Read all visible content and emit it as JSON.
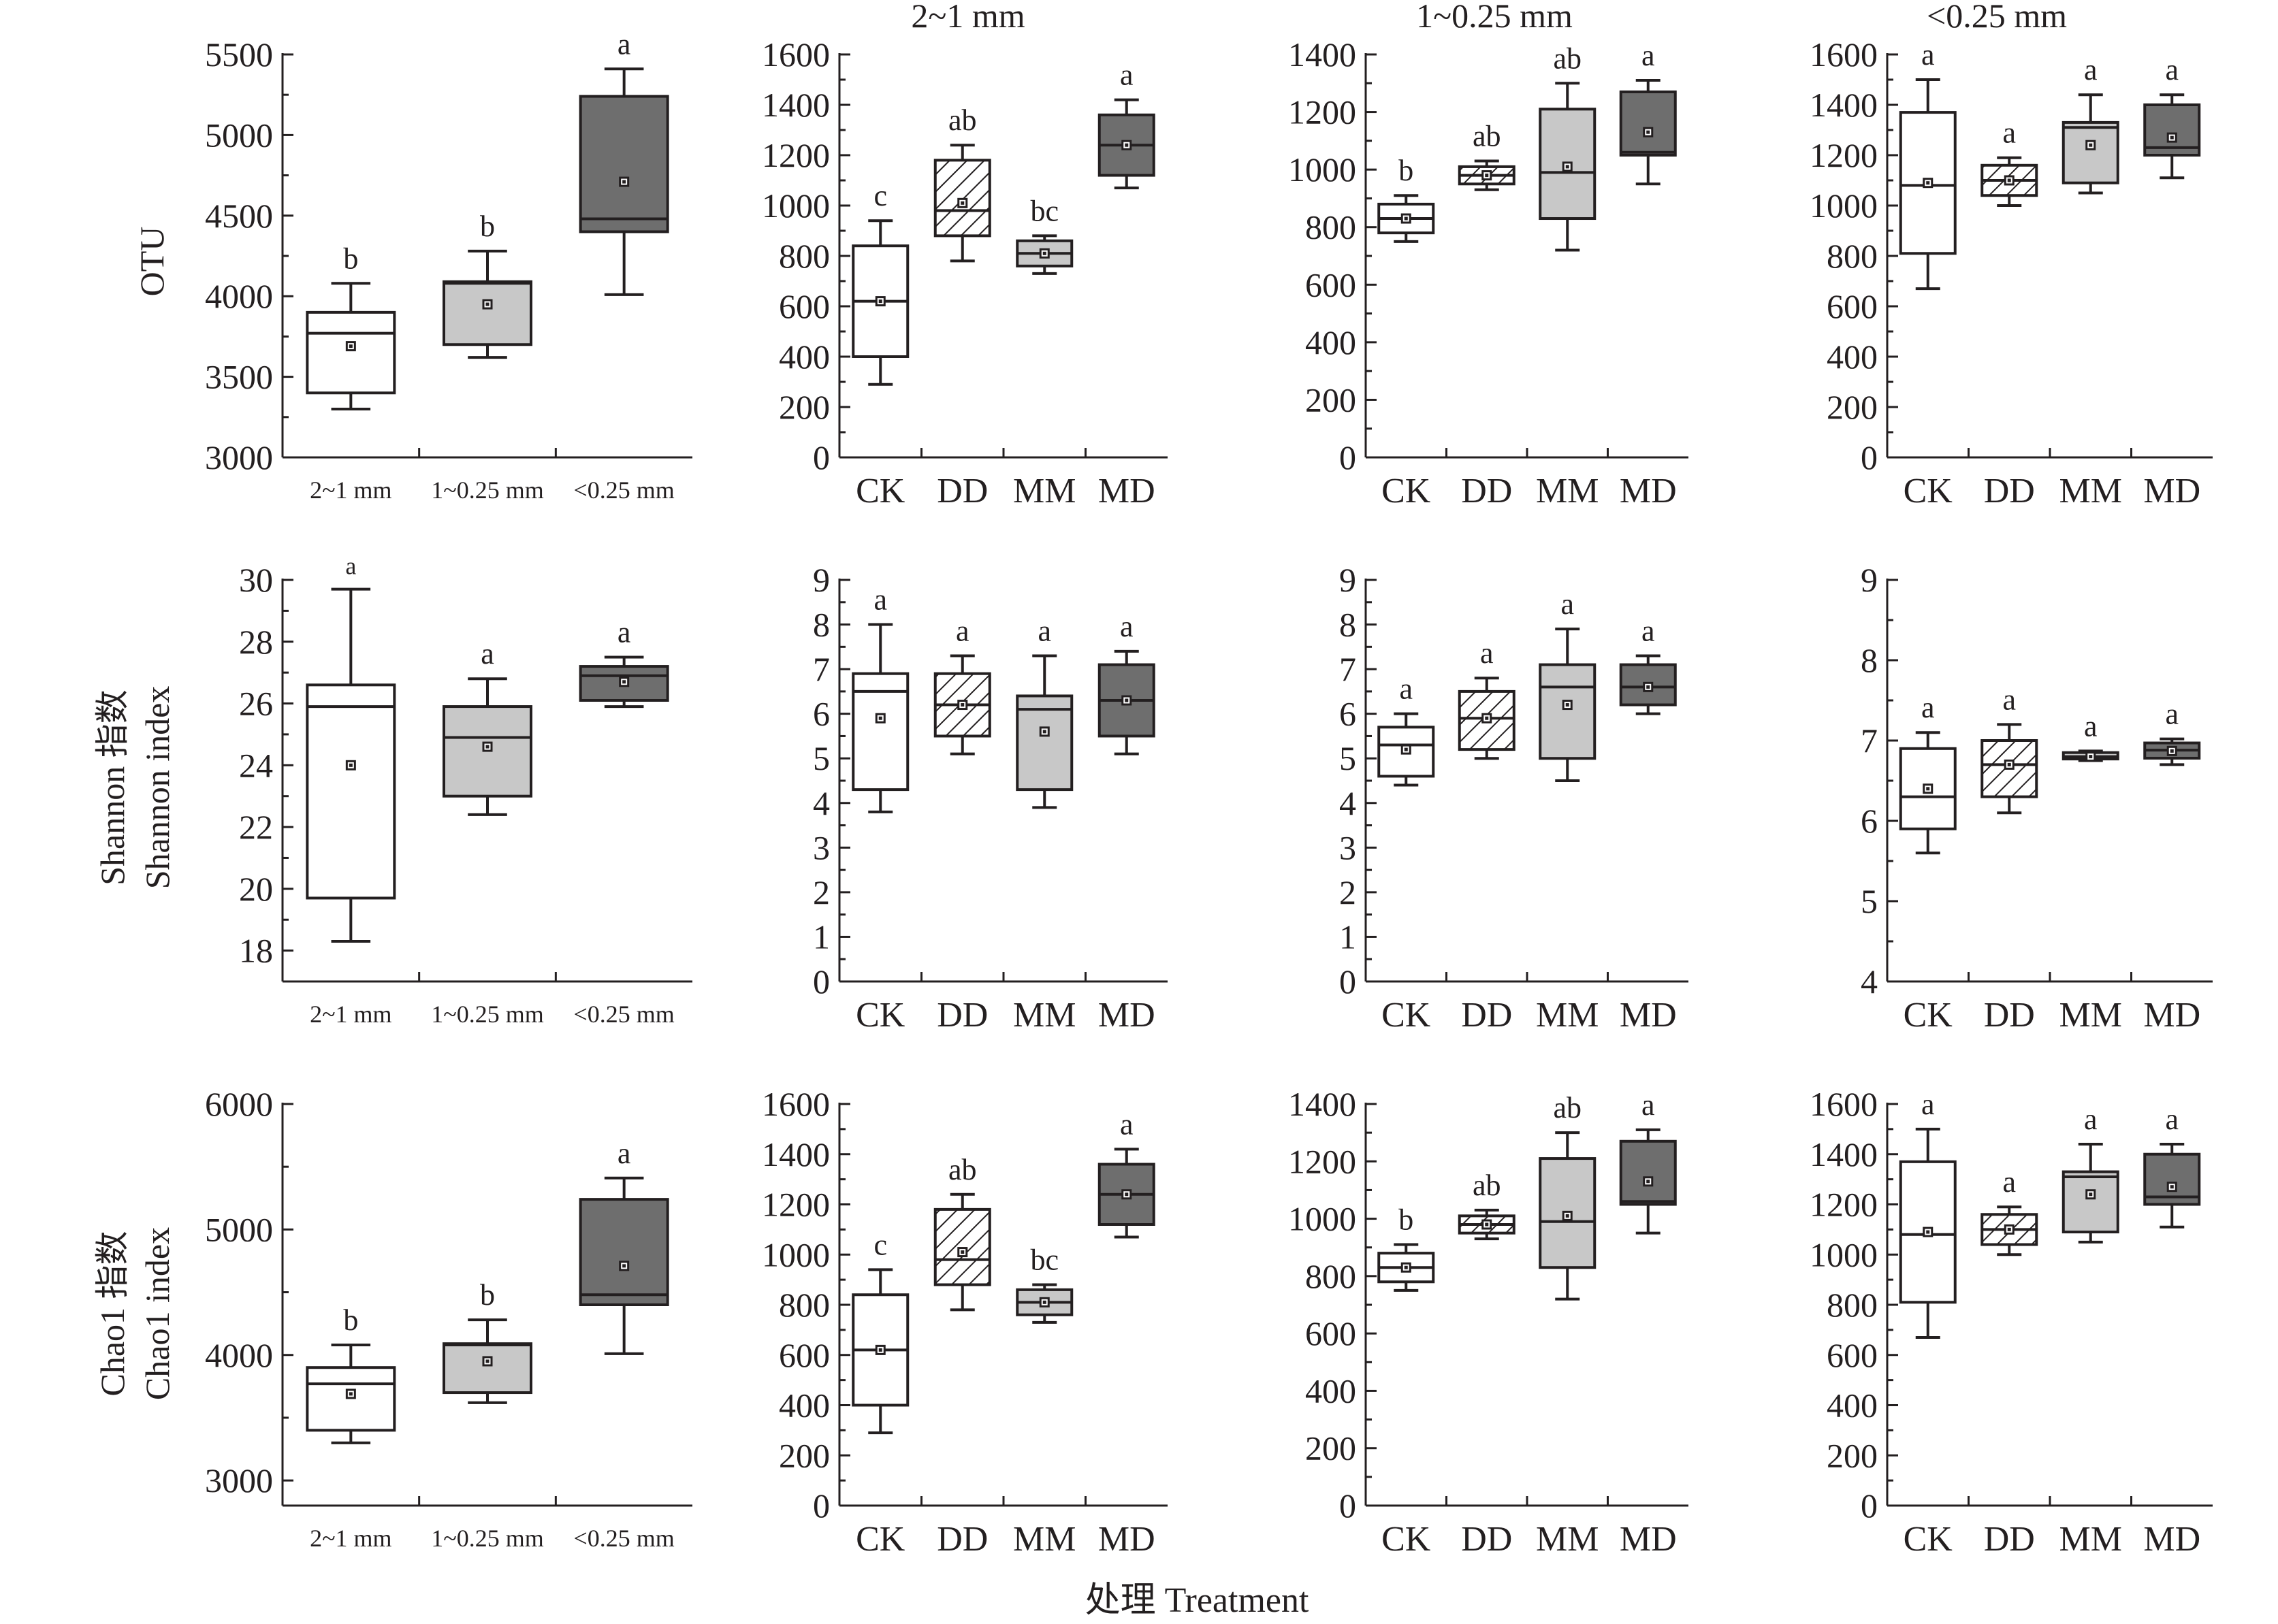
{
  "figure": {
    "column_titles": [
      "2~1 mm",
      "1~0.25 mm",
      "<0.25 mm"
    ],
    "row_labels": [
      [
        "OTU"
      ],
      [
        "Shannon 指数",
        "Shannon index"
      ],
      [
        "Chao1 指数",
        "Chao1 index"
      ]
    ],
    "x_axis_title": "处理 Treatment",
    "colors": {
      "white": "#ffffff",
      "light_gray": "#c8c8c8",
      "dark_gray": "#6e6e6e",
      "hatched": "hatch",
      "ink": "#231f20"
    }
  },
  "chart_data": [
    {
      "type": "box",
      "row": 0,
      "col": 0,
      "ylim": [
        3000,
        5500
      ],
      "yticks": [
        3000,
        3500,
        4000,
        4500,
        5000,
        5500
      ],
      "categories": [
        "2~1 mm",
        "1~0.25 mm",
        "<0.25 mm"
      ],
      "boxes": [
        {
          "fill": "white",
          "min": 3300,
          "q1": 3400,
          "median": 3770,
          "q3": 3900,
          "max": 4080,
          "mean": 3690,
          "letter": "b"
        },
        {
          "fill": "light_gray",
          "min": 3620,
          "q1": 3700,
          "median": 4080,
          "q3": 4090,
          "max": 4280,
          "mean": 3950,
          "letter": "b"
        },
        {
          "fill": "dark_gray",
          "min": 4010,
          "q1": 4400,
          "median": 4480,
          "q3": 5240,
          "max": 5410,
          "mean": 4710,
          "letter": "a"
        }
      ]
    },
    {
      "type": "box",
      "row": 0,
      "col": 1,
      "ylim": [
        0,
        1600
      ],
      "yticks": [
        0,
        200,
        400,
        600,
        800,
        1000,
        1200,
        1400,
        1600
      ],
      "categories": [
        "CK",
        "DD",
        "MM",
        "MD"
      ],
      "boxes": [
        {
          "fill": "white",
          "min": 290,
          "q1": 400,
          "median": 620,
          "q3": 840,
          "max": 940,
          "mean": 620,
          "letter": "c"
        },
        {
          "fill": "hatched",
          "min": 780,
          "q1": 880,
          "median": 980,
          "q3": 1180,
          "max": 1240,
          "mean": 1010,
          "letter": "ab"
        },
        {
          "fill": "light_gray",
          "min": 730,
          "q1": 760,
          "median": 810,
          "q3": 860,
          "max": 880,
          "mean": 810,
          "letter": "bc"
        },
        {
          "fill": "dark_gray",
          "min": 1070,
          "q1": 1120,
          "median": 1240,
          "q3": 1360,
          "max": 1420,
          "mean": 1240,
          "letter": "a"
        }
      ]
    },
    {
      "type": "box",
      "row": 0,
      "col": 2,
      "ylim": [
        0,
        1400
      ],
      "yticks": [
        0,
        200,
        400,
        600,
        800,
        1000,
        1200,
        1400
      ],
      "categories": [
        "CK",
        "DD",
        "MM",
        "MD"
      ],
      "boxes": [
        {
          "fill": "white",
          "min": 750,
          "q1": 780,
          "median": 830,
          "q3": 880,
          "max": 910,
          "mean": 830,
          "letter": "b"
        },
        {
          "fill": "hatched",
          "min": 930,
          "q1": 950,
          "median": 980,
          "q3": 1010,
          "max": 1030,
          "mean": 980,
          "letter": "ab"
        },
        {
          "fill": "light_gray",
          "min": 720,
          "q1": 830,
          "median": 990,
          "q3": 1210,
          "max": 1300,
          "mean": 1010,
          "letter": "ab"
        },
        {
          "fill": "dark_gray",
          "min": 950,
          "q1": 1050,
          "median": 1060,
          "q3": 1270,
          "max": 1310,
          "mean": 1130,
          "letter": "a"
        }
      ]
    },
    {
      "type": "box",
      "row": 0,
      "col": 3,
      "ylim": [
        0,
        1600
      ],
      "yticks": [
        0,
        200,
        400,
        600,
        800,
        1000,
        1200,
        1400,
        1600
      ],
      "categories": [
        "CK",
        "DD",
        "MM",
        "MD"
      ],
      "boxes": [
        {
          "fill": "white",
          "min": 670,
          "q1": 810,
          "median": 1080,
          "q3": 1370,
          "max": 1500,
          "mean": 1090,
          "letter": "a"
        },
        {
          "fill": "hatched",
          "min": 1000,
          "q1": 1040,
          "median": 1100,
          "q3": 1160,
          "max": 1190,
          "mean": 1100,
          "letter": "a"
        },
        {
          "fill": "light_gray",
          "min": 1050,
          "q1": 1090,
          "median": 1310,
          "q3": 1330,
          "max": 1440,
          "mean": 1240,
          "letter": "a"
        },
        {
          "fill": "dark_gray",
          "min": 1110,
          "q1": 1200,
          "median": 1230,
          "q3": 1400,
          "max": 1440,
          "mean": 1270,
          "letter": "a"
        }
      ]
    },
    {
      "type": "box",
      "row": 1,
      "col": 0,
      "ylim": [
        17,
        30
      ],
      "yticks": [
        18,
        20,
        22,
        24,
        26,
        28,
        30
      ],
      "categories": [
        "2~1 mm",
        "1~0.25 mm",
        "<0.25 mm"
      ],
      "boxes": [
        {
          "fill": "white",
          "min": 18.3,
          "q1": 19.7,
          "median": 25.9,
          "q3": 26.6,
          "max": 29.7,
          "mean": 24.0,
          "letter": "a"
        },
        {
          "fill": "light_gray",
          "min": 22.4,
          "q1": 23.0,
          "median": 24.9,
          "q3": 25.9,
          "max": 26.8,
          "mean": 24.6,
          "letter": "a"
        },
        {
          "fill": "dark_gray",
          "min": 25.9,
          "q1": 26.1,
          "median": 26.9,
          "q3": 27.2,
          "max": 27.5,
          "mean": 26.7,
          "letter": "a"
        }
      ]
    },
    {
      "type": "box",
      "row": 1,
      "col": 1,
      "ylim": [
        0,
        9
      ],
      "yticks": [
        0,
        1,
        2,
        3,
        4,
        5,
        6,
        7,
        8,
        9
      ],
      "categories": [
        "CK",
        "DD",
        "MM",
        "MD"
      ],
      "boxes": [
        {
          "fill": "white",
          "min": 3.8,
          "q1": 4.3,
          "median": 6.5,
          "q3": 6.9,
          "max": 8.0,
          "mean": 5.9,
          "letter": "a"
        },
        {
          "fill": "hatched",
          "min": 5.1,
          "q1": 5.5,
          "median": 6.2,
          "q3": 6.9,
          "max": 7.3,
          "mean": 6.2,
          "letter": "a"
        },
        {
          "fill": "light_gray",
          "min": 3.9,
          "q1": 4.3,
          "median": 6.1,
          "q3": 6.4,
          "max": 7.3,
          "mean": 5.6,
          "letter": "a"
        },
        {
          "fill": "dark_gray",
          "min": 5.1,
          "q1": 5.5,
          "median": 6.3,
          "q3": 7.1,
          "max": 7.4,
          "mean": 6.3,
          "letter": "a"
        }
      ]
    },
    {
      "type": "box",
      "row": 1,
      "col": 2,
      "ylim": [
        0,
        9
      ],
      "yticks": [
        0,
        1,
        2,
        3,
        4,
        5,
        6,
        7,
        8,
        9
      ],
      "categories": [
        "CK",
        "DD",
        "MM",
        "MD"
      ],
      "boxes": [
        {
          "fill": "white",
          "min": 4.4,
          "q1": 4.6,
          "median": 5.3,
          "q3": 5.7,
          "max": 6.0,
          "mean": 5.2,
          "letter": "a"
        },
        {
          "fill": "hatched",
          "min": 5.0,
          "q1": 5.2,
          "median": 5.9,
          "q3": 6.5,
          "max": 6.8,
          "mean": 5.9,
          "letter": "a"
        },
        {
          "fill": "light_gray",
          "min": 4.5,
          "q1": 5.0,
          "median": 6.6,
          "q3": 7.1,
          "max": 7.9,
          "mean": 6.2,
          "letter": "a"
        },
        {
          "fill": "dark_gray",
          "min": 6.0,
          "q1": 6.2,
          "median": 6.6,
          "q3": 7.1,
          "max": 7.3,
          "mean": 6.6,
          "letter": "a"
        }
      ]
    },
    {
      "type": "box",
      "row": 1,
      "col": 3,
      "ylim": [
        4,
        9
      ],
      "yticks": [
        4,
        5,
        6,
        7,
        8,
        9
      ],
      "categories": [
        "CK",
        "DD",
        "MM",
        "MD"
      ],
      "boxes": [
        {
          "fill": "white",
          "min": 5.6,
          "q1": 5.9,
          "median": 6.3,
          "q3": 6.9,
          "max": 7.1,
          "mean": 6.4,
          "letter": "a"
        },
        {
          "fill": "hatched",
          "min": 6.1,
          "q1": 6.3,
          "median": 6.7,
          "q3": 7.0,
          "max": 7.2,
          "mean": 6.7,
          "letter": "a"
        },
        {
          "fill": "light_gray",
          "min": 6.75,
          "q1": 6.77,
          "median": 6.8,
          "q3": 6.85,
          "max": 6.87,
          "mean": 6.8,
          "letter": "a"
        },
        {
          "fill": "dark_gray",
          "min": 6.7,
          "q1": 6.78,
          "median": 6.88,
          "q3": 6.97,
          "max": 7.02,
          "mean": 6.87,
          "letter": "a"
        }
      ]
    },
    {
      "type": "box",
      "row": 2,
      "col": 0,
      "ylim": [
        2800,
        6000
      ],
      "yticks": [
        3000,
        4000,
        5000,
        6000
      ],
      "categories": [
        "2~1 mm",
        "1~0.25 mm",
        "<0.25 mm"
      ],
      "boxes": [
        {
          "fill": "white",
          "min": 3300,
          "q1": 3400,
          "median": 3770,
          "q3": 3900,
          "max": 4080,
          "mean": 3690,
          "letter": "b"
        },
        {
          "fill": "light_gray",
          "min": 3620,
          "q1": 3700,
          "median": 4080,
          "q3": 4090,
          "max": 4280,
          "mean": 3950,
          "letter": "b"
        },
        {
          "fill": "dark_gray",
          "min": 4010,
          "q1": 4400,
          "median": 4480,
          "q3": 5240,
          "max": 5410,
          "mean": 4710,
          "letter": "a"
        }
      ]
    },
    {
      "type": "box",
      "row": 2,
      "col": 1,
      "ylim": [
        0,
        1600
      ],
      "yticks": [
        0,
        200,
        400,
        600,
        800,
        1000,
        1200,
        1400,
        1600
      ],
      "categories": [
        "CK",
        "DD",
        "MM",
        "MD"
      ],
      "boxes": [
        {
          "fill": "white",
          "min": 290,
          "q1": 400,
          "median": 620,
          "q3": 840,
          "max": 940,
          "mean": 620,
          "letter": "c"
        },
        {
          "fill": "hatched",
          "min": 780,
          "q1": 880,
          "median": 980,
          "q3": 1180,
          "max": 1240,
          "mean": 1010,
          "letter": "ab"
        },
        {
          "fill": "light_gray",
          "min": 730,
          "q1": 760,
          "median": 810,
          "q3": 860,
          "max": 880,
          "mean": 810,
          "letter": "bc"
        },
        {
          "fill": "dark_gray",
          "min": 1070,
          "q1": 1120,
          "median": 1240,
          "q3": 1360,
          "max": 1420,
          "mean": 1240,
          "letter": "a"
        }
      ]
    },
    {
      "type": "box",
      "row": 2,
      "col": 2,
      "ylim": [
        0,
        1400
      ],
      "yticks": [
        0,
        200,
        400,
        600,
        800,
        1000,
        1200,
        1400
      ],
      "categories": [
        "CK",
        "DD",
        "MM",
        "MD"
      ],
      "boxes": [
        {
          "fill": "white",
          "min": 750,
          "q1": 780,
          "median": 830,
          "q3": 880,
          "max": 910,
          "mean": 830,
          "letter": "b"
        },
        {
          "fill": "hatched",
          "min": 930,
          "q1": 950,
          "median": 980,
          "q3": 1010,
          "max": 1030,
          "mean": 980,
          "letter": "ab"
        },
        {
          "fill": "light_gray",
          "min": 720,
          "q1": 830,
          "median": 990,
          "q3": 1210,
          "max": 1300,
          "mean": 1010,
          "letter": "ab"
        },
        {
          "fill": "dark_gray",
          "min": 950,
          "q1": 1050,
          "median": 1060,
          "q3": 1270,
          "max": 1310,
          "mean": 1130,
          "letter": "a"
        }
      ]
    },
    {
      "type": "box",
      "row": 2,
      "col": 3,
      "ylim": [
        0,
        1600
      ],
      "yticks": [
        0,
        200,
        400,
        600,
        800,
        1000,
        1200,
        1400,
        1600
      ],
      "categories": [
        "CK",
        "DD",
        "MM",
        "MD"
      ],
      "boxes": [
        {
          "fill": "white",
          "min": 670,
          "q1": 810,
          "median": 1080,
          "q3": 1370,
          "max": 1500,
          "mean": 1090,
          "letter": "a"
        },
        {
          "fill": "hatched",
          "min": 1000,
          "q1": 1040,
          "median": 1100,
          "q3": 1160,
          "max": 1190,
          "mean": 1100,
          "letter": "a"
        },
        {
          "fill": "light_gray",
          "min": 1050,
          "q1": 1090,
          "median": 1310,
          "q3": 1330,
          "max": 1440,
          "mean": 1240,
          "letter": "a"
        },
        {
          "fill": "dark_gray",
          "min": 1110,
          "q1": 1200,
          "median": 1230,
          "q3": 1400,
          "max": 1440,
          "mean": 1270,
          "letter": "a"
        }
      ]
    }
  ]
}
